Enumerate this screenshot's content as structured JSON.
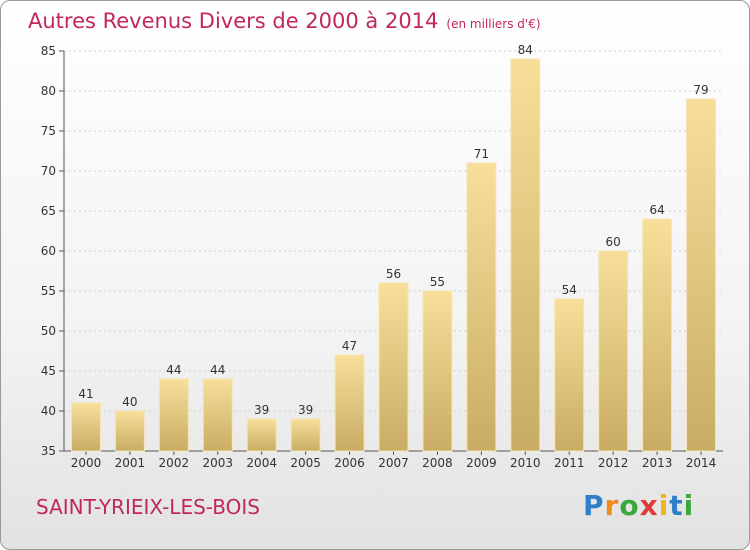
{
  "chart_data": {
    "type": "bar",
    "title": "Autres Revenus Divers de 2000 à 2014",
    "subtitle": "(en milliers d'€)",
    "categories": [
      "2000",
      "2001",
      "2002",
      "2003",
      "2004",
      "2005",
      "2006",
      "2007",
      "2008",
      "2009",
      "2010",
      "2011",
      "2012",
      "2013",
      "2014"
    ],
    "values": [
      41,
      40,
      44,
      44,
      39,
      39,
      47,
      56,
      55,
      71,
      84,
      54,
      60,
      64,
      79
    ],
    "ylim": [
      35,
      85
    ],
    "yticks": [
      35,
      40,
      45,
      50,
      55,
      60,
      65,
      70,
      75,
      80,
      85
    ],
    "grid": true,
    "bar_color": "#e8c978"
  },
  "footer": {
    "commune": "SAINT-YRIEIX-LES-BOIS",
    "logo": [
      {
        "ch": "P",
        "color": "#2e7fc8"
      },
      {
        "ch": "r",
        "color": "#f08a1c"
      },
      {
        "ch": "o",
        "color": "#3aa83a"
      },
      {
        "ch": "x",
        "color": "#e03a3a"
      },
      {
        "ch": "i",
        "color": "#f0b41c"
      },
      {
        "ch": "t",
        "color": "#2e7fc8"
      },
      {
        "ch": "i",
        "color": "#3aa83a"
      }
    ]
  }
}
